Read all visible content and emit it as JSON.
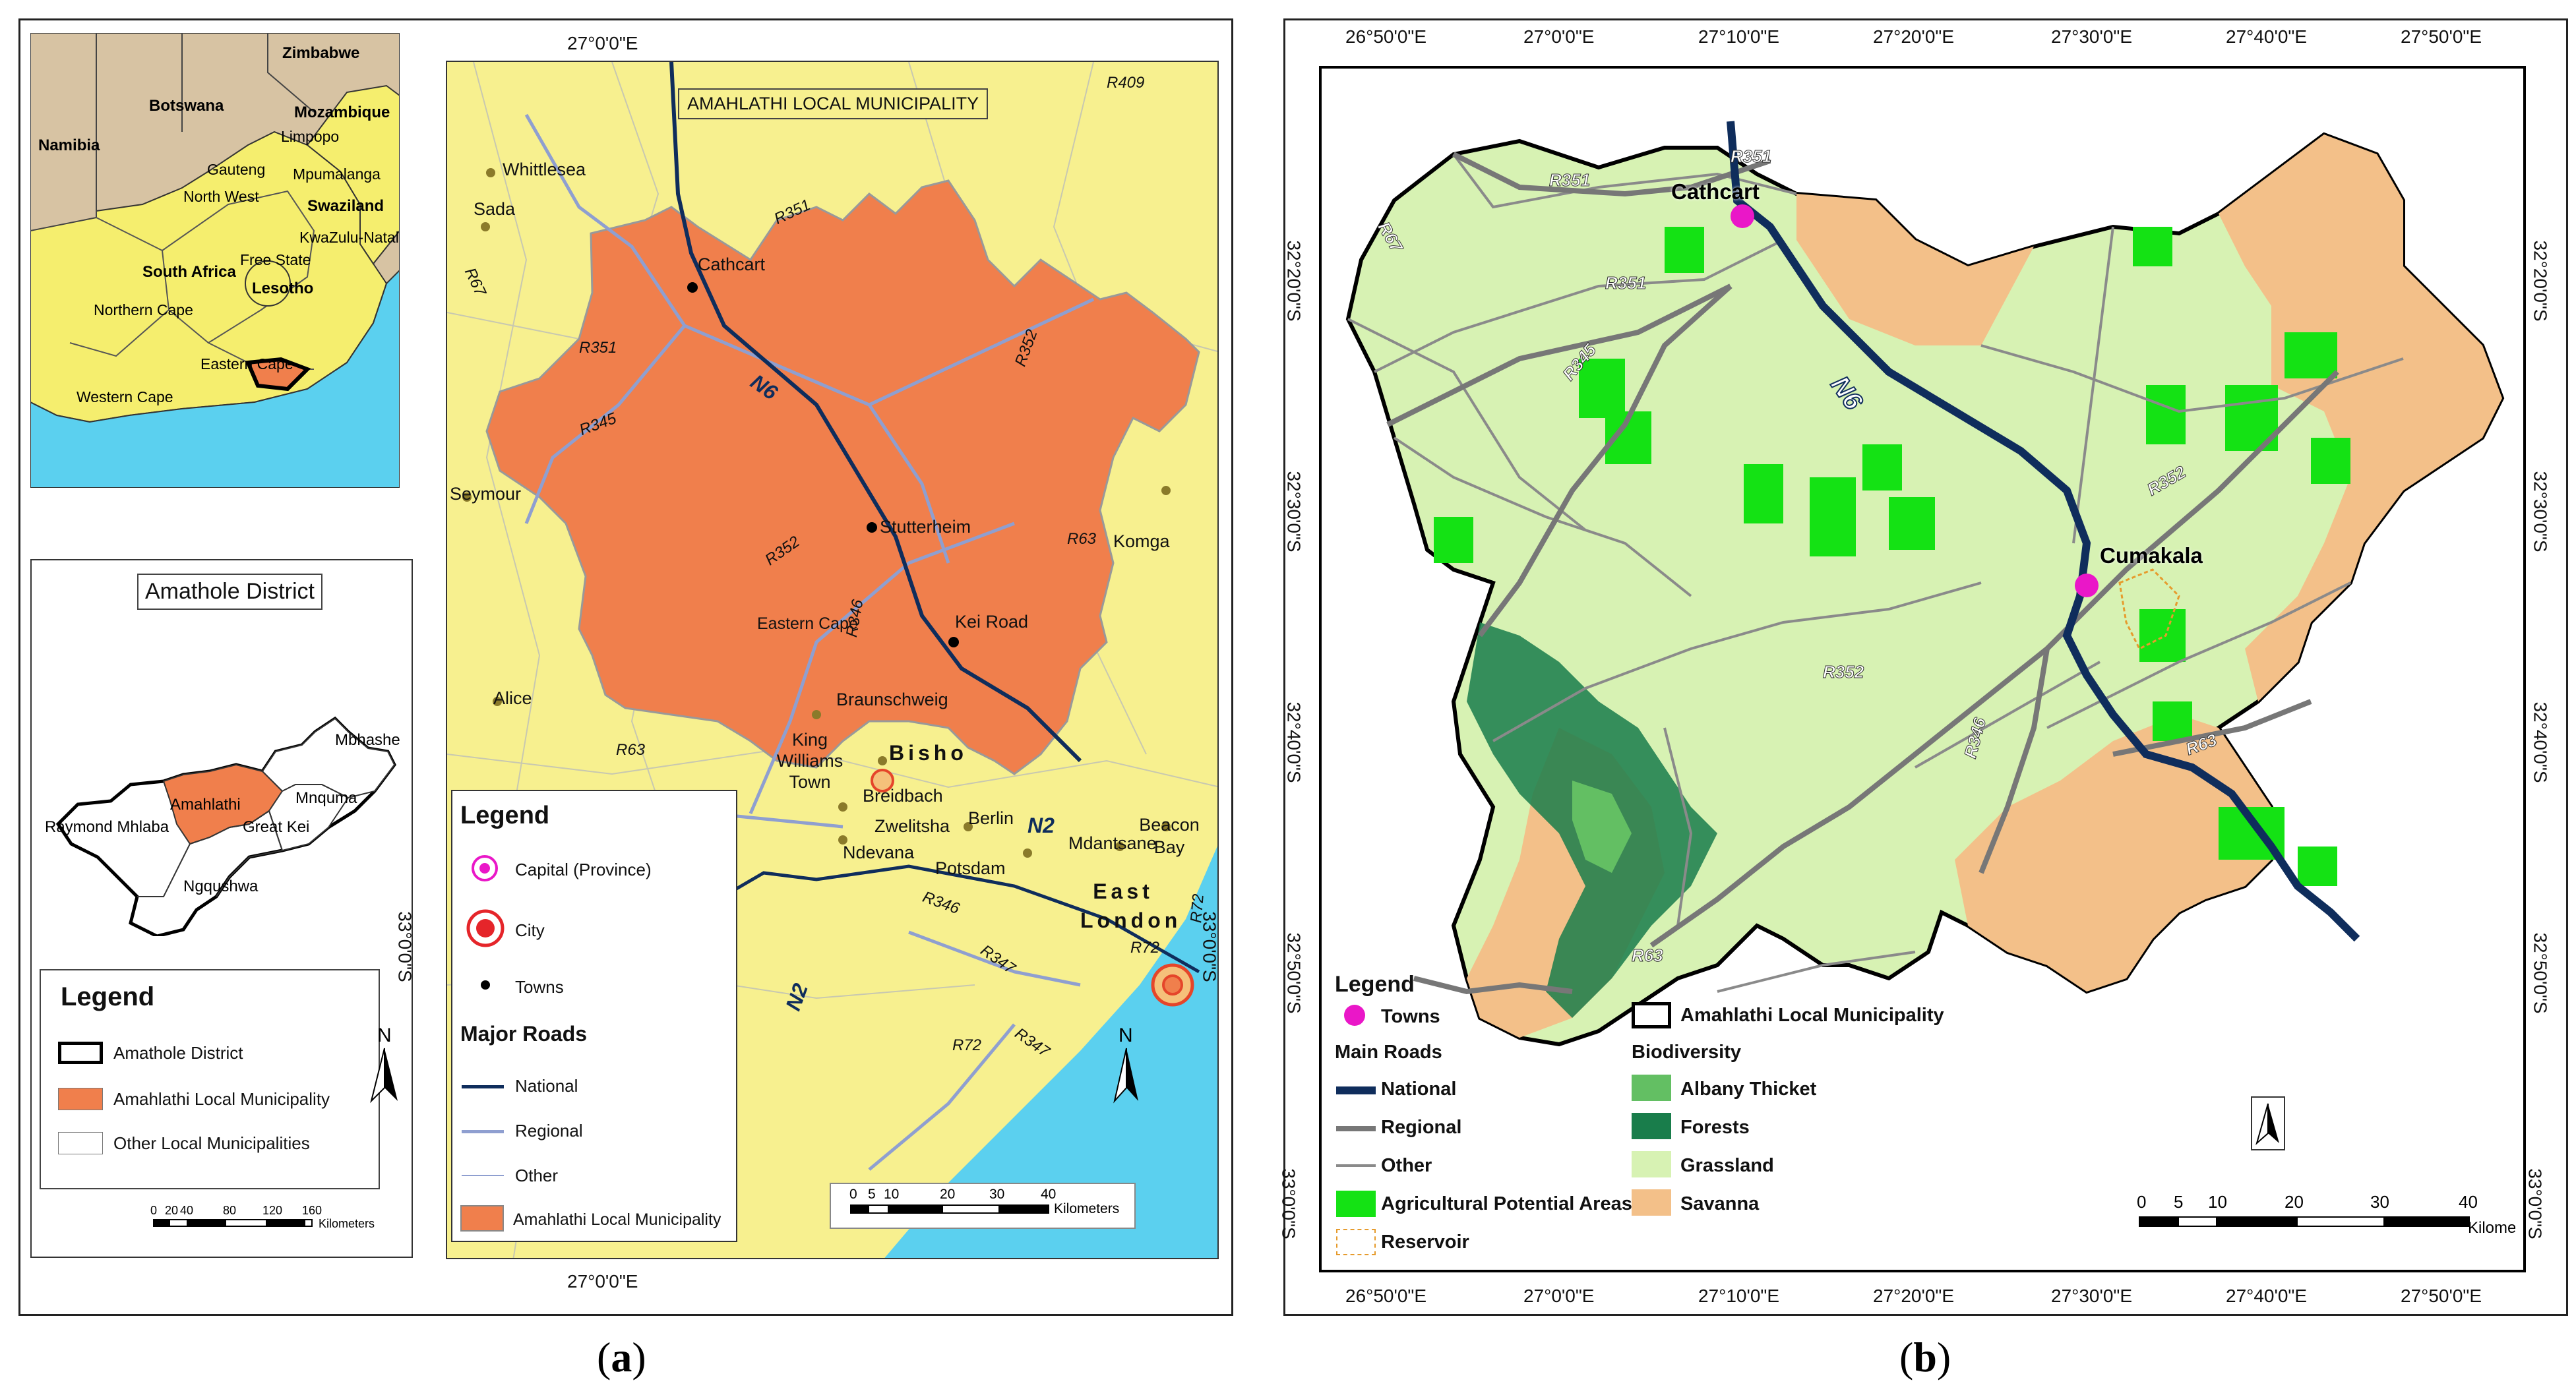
{
  "panel_a": {
    "caption": "(a)",
    "caption_letter": "a",
    "inset_sa": {
      "countries": [
        "Zimbabwe",
        "Botswana",
        "Namibia",
        "Mozambique",
        "Swaziland",
        "Lesotho",
        "South Africa"
      ],
      "provinces": [
        "Limpopo",
        "Gauteng",
        "Mpumalanga",
        "North West",
        "KwaZulu-Natal",
        "Free State",
        "Northern Cape",
        "Eastern Cape",
        "Western Cape"
      ]
    },
    "inset_district": {
      "title": "Amathole District",
      "labels": [
        "Mbhashe",
        "Mnquma",
        "Amahlathi",
        "Great Kei",
        "Raymond Mhlaba",
        "Ngqushwa"
      ],
      "legend_title": "Legend",
      "legend_items": [
        "Amathole District",
        "Amahlathi Local Municipality",
        "Other Local Municipalities"
      ],
      "scale_ticks": [
        "0",
        "20",
        "40",
        "80",
        "120",
        "160"
      ],
      "scale_unit": "Kilometers",
      "north": "N"
    },
    "main_map": {
      "title": "AMAHLATHI LOCAL MUNICIPALITY",
      "coord_top": "27°0'0\"E",
      "coord_bottom": "27°0'0\"E",
      "coord_left": "33°0'0\"S",
      "coord_right": "33°0'0\"S",
      "towns": [
        "Whittlesea",
        "Sada",
        "Cathcart",
        "Seymour",
        "Stutterheim",
        "Kei Road",
        "Komga",
        "Alice",
        "Eastern Cape",
        "Braunschweig",
        "King Williams Town",
        "Breidbach",
        "Zwelitsha",
        "Ndevana",
        "Berlin",
        "Potsdam",
        "Mdantsane",
        "Beacon Bay"
      ],
      "cities": [
        "Bisho",
        "East London"
      ],
      "roads": [
        "R409",
        "R351",
        "R67",
        "R351",
        "R345",
        "N6",
        "R352",
        "R346",
        "R352",
        "R63",
        "R63",
        "N2",
        "N2",
        "R346",
        "R347",
        "R72",
        "R347",
        "R72",
        "R72"
      ],
      "scale_ticks": [
        "0",
        "5",
        "10",
        "20",
        "30",
        "40"
      ],
      "scale_unit": "Kilometers",
      "north": "N",
      "legend": {
        "title": "Legend",
        "items": [
          "Capital (Province)",
          "City",
          "Towns"
        ],
        "roads_title": "Major Roads",
        "road_items": [
          "National",
          "Regional",
          "Other"
        ],
        "area_item": "Amahlathi Local Municipality"
      }
    }
  },
  "panel_b": {
    "caption": "(b)",
    "caption_letter": "b",
    "top_coords": [
      "26°50'0\"E",
      "27°0'0\"E",
      "27°10'0\"E",
      "27°20'0\"E",
      "27°30'0\"E",
      "27°40'0\"E",
      "27°50'0\"E"
    ],
    "bottom_coords": [
      "26°50'0\"E",
      "27°0'0\"E",
      "27°10'0\"E",
      "27°20'0\"E",
      "27°30'0\"E",
      "27°40'0\"E",
      "27°50'0\"E"
    ],
    "side_coords": [
      "32°20'0\"S",
      "32°30'0\"S",
      "32°40'0\"S",
      "32°50'0\"S",
      "33°0'0\"S"
    ],
    "towns": [
      "Cathcart",
      "Cumakala"
    ],
    "roads": [
      "R351",
      "R351",
      "R351",
      "R67",
      "R345",
      "N6",
      "R352",
      "R352",
      "R346",
      "R63",
      "R63"
    ],
    "legend": {
      "title": "Legend",
      "towns": "Towns",
      "main_roads": "Main Roads",
      "road_items": [
        "National",
        "Regional",
        "Other"
      ],
      "agri": "Agricultural Potential Areas",
      "reservoir": "Reservoir",
      "boundary": "Amahlathi Local Municipality",
      "biodiversity": "Biodiversity",
      "bio_items": [
        "Albany Thicket",
        "Forests",
        "Grassland",
        "Savanna"
      ]
    },
    "scale_ticks": [
      "0",
      "5",
      "10",
      "20",
      "30",
      "40"
    ],
    "scale_unit": "Kilometers"
  },
  "colors": {
    "ocean": "#5bd0ef",
    "land_yellow": "#f7f08f",
    "amahlathi": "#f07f4c",
    "neighbors": "#d7c3a3",
    "national_road": "#0f2d5c",
    "regional_road": "#8f9fd0",
    "grassland": "#d7f2b3",
    "savanna": "#f3c089",
    "forest": "#197d4b",
    "albany": "#63bf63",
    "agri": "#14e214",
    "town_magenta": "#ea17c8"
  }
}
